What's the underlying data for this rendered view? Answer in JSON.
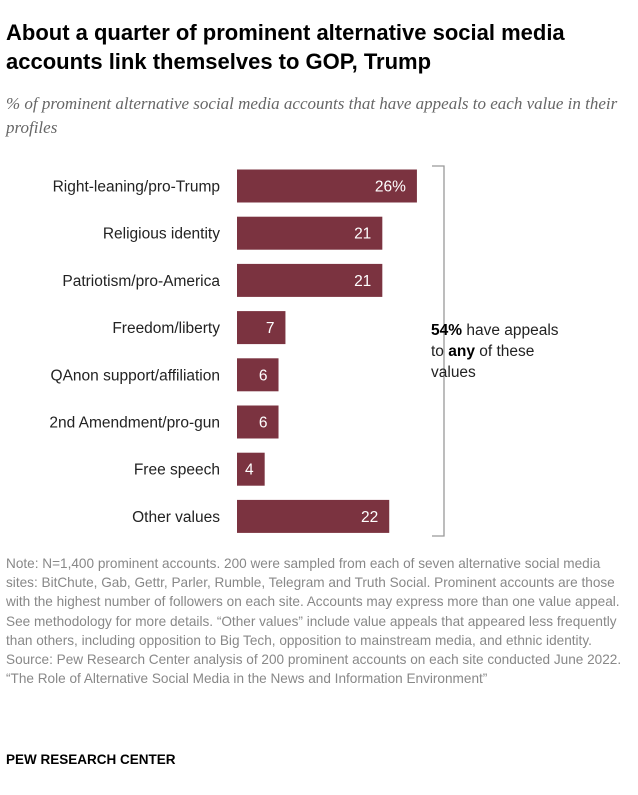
{
  "title": "About a quarter of prominent alternative social media accounts link themselves to GOP, Trump",
  "subtitle": "% of prominent alternative social media accounts that have appeals to each value in their profiles",
  "chart_data": {
    "type": "bar",
    "orientation": "horizontal",
    "categories": [
      "Right-leaning/pro-Trump",
      "Religious identity",
      "Patriotism/pro-America",
      "Freedom/liberty",
      "QAnon support/affiliation",
      "2nd Amendment/pro-gun",
      "Free speech",
      "Other values"
    ],
    "values": [
      26,
      21,
      21,
      7,
      6,
      6,
      4,
      22
    ],
    "value_labels": [
      "26%",
      "21",
      "21",
      "7",
      "6",
      "6",
      "4",
      "22"
    ],
    "unit": "%",
    "bar_color": "#7b3340",
    "annotation": {
      "value": "54%",
      "text_1": " have appeals to ",
      "emphasis": "any",
      "text_2": " of these values"
    }
  },
  "note": "Note: N=1,400 prominent accounts. 200 were sampled from each of seven alternative social media sites: BitChute, Gab, Gettr, Parler, Rumble, Telegram and Truth Social. Prominent accounts are those with the highest number of followers on each site. Accounts may express more than one value appeal. See methodology for more details. “Other values” include value appeals that appeared less frequently than others, including opposition to Big Tech, opposition to mainstream media, and ethnic identity.",
  "source": "Source: Pew Research Center analysis of 200 prominent accounts on each site conducted June 2022.",
  "report": "“The Role of Alternative Social Media in the News and Information Environment”",
  "footer": "PEW RESEARCH CENTER"
}
